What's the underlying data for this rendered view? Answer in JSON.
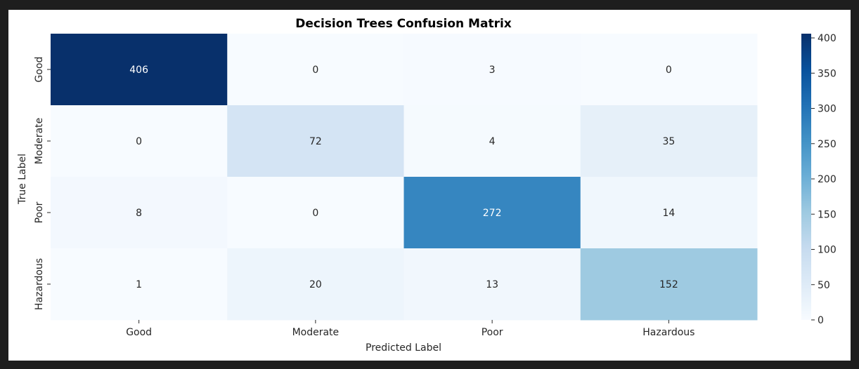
{
  "chart_data": {
    "type": "heatmap",
    "title": "Decision Trees Confusion Matrix",
    "xlabel": "Predicted Label",
    "ylabel": "True Label",
    "x_categories": [
      "Good",
      "Moderate",
      "Poor",
      "Hazardous"
    ],
    "y_categories": [
      "Good",
      "Moderate",
      "Poor",
      "Hazardous"
    ],
    "values": [
      [
        406,
        0,
        3,
        0
      ],
      [
        0,
        72,
        4,
        35
      ],
      [
        8,
        0,
        272,
        14
      ],
      [
        1,
        20,
        13,
        152
      ]
    ],
    "colormap": "Blues",
    "vmin": 0,
    "vmax": 406,
    "colorbar": {
      "ticks": [
        0,
        50,
        100,
        150,
        200,
        250,
        300,
        350,
        400
      ],
      "tick_labels": [
        "0",
        "50",
        "100",
        "150",
        "200",
        "250",
        "300",
        "350",
        "400"
      ]
    },
    "annotations": true
  }
}
